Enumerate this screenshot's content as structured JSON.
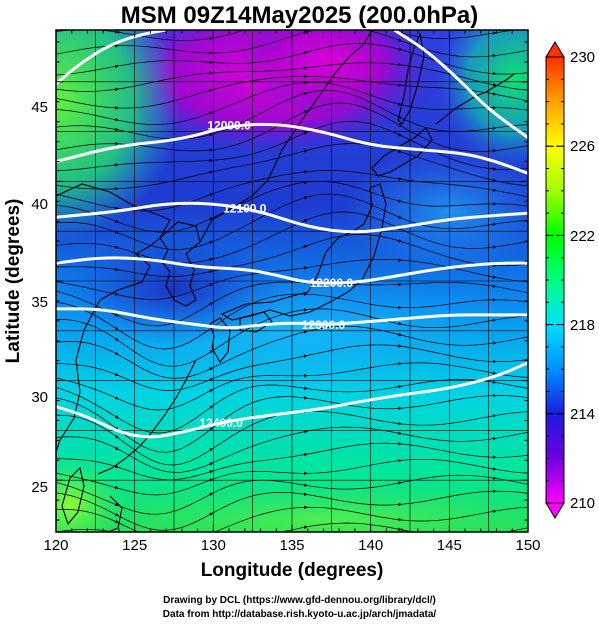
{
  "title": "MSM 09Z14May2025 (200.0hPa)",
  "xlabel": "Longitude (degrees)",
  "ylabel": "Latitude  (degrees)",
  "x_ticks": [
    "120",
    "125",
    "130",
    "135",
    "140",
    "145",
    "150"
  ],
  "y_ticks": [
    "25",
    "30",
    "35",
    "40",
    "45"
  ],
  "colorbar_ticks": [
    "210",
    "214",
    "218",
    "222",
    "226",
    "230"
  ],
  "contour_labels": [
    "12000.0",
    "12100.0",
    "12200.0",
    "12300.0",
    "12400.0"
  ],
  "credit_line1": "Drawing by DCL (https://www.gfd-dennou.org/library/dcl/)",
  "credit_line2": "Data from http://database.rish.kyoto-u.ac.jp/arch/jmadata/",
  "chart_data": {
    "type": "heatmap",
    "title": "MSM 09Z14May2025 (200.0hPa)",
    "xlabel": "Longitude (degrees)",
    "ylabel": "Latitude  (degrees)",
    "xlim": [
      120,
      150
    ],
    "ylim": [
      22.4,
      47.6
    ],
    "colorbar_range": [
      210,
      230
    ],
    "contour_lines": [
      {
        "label": "12000.0",
        "lon": [
          120,
          124,
          128,
          131,
          134,
          137,
          140,
          143,
          146,
          148,
          150
        ],
        "lat": [
          41.0,
          41.8,
          42.1,
          42.8,
          42.9,
          42.5,
          41.8,
          41.6,
          41.4,
          41.0,
          40.4
        ]
      },
      {
        "label": "12100.0",
        "lon": [
          120,
          124,
          127,
          130,
          133,
          136,
          139,
          142,
          145,
          148,
          150
        ],
        "lat": [
          38.2,
          38.5,
          38.9,
          38.9,
          38.5,
          37.7,
          37.4,
          37.7,
          38.1,
          38.3,
          38.4
        ]
      },
      {
        "label": "12200.0",
        "lon": [
          120,
          123,
          126,
          129,
          132,
          134,
          136,
          139,
          142,
          145,
          148,
          150
        ],
        "lat": [
          35.9,
          36.2,
          36.1,
          35.7,
          35.6,
          35.3,
          34.9,
          34.9,
          35.3,
          35.7,
          35.9,
          35.9
        ]
      },
      {
        "label": "12300.0",
        "lon": [
          120,
          123,
          126,
          129,
          131,
          133,
          135,
          137,
          139,
          142,
          145,
          148,
          150
        ],
        "lat": [
          33.6,
          33.6,
          33.1,
          32.8,
          32.6,
          32.8,
          32.9,
          32.8,
          32.9,
          33.1,
          33.3,
          33.3,
          33.3
        ]
      },
      {
        "label": "12400.0",
        "lon": [
          120,
          122,
          124,
          126,
          128,
          130,
          132,
          135,
          137,
          139,
          142,
          145,
          148,
          150
        ],
        "lat": [
          28.7,
          28.2,
          27.4,
          27.1,
          27.4,
          27.8,
          28.1,
          28.4,
          28.6,
          28.9,
          29.3,
          29.6,
          30.2,
          30.9
        ]
      },
      {
        "label": "",
        "lon": [
          120,
          121.5,
          123.5,
          125.5,
          127
        ],
        "lat": [
          44.9,
          45.9,
          46.9,
          47.4,
          47.6
        ]
      },
      {
        "label": "",
        "lon": [
          141.5,
          143.5,
          145.5,
          147.5,
          150
        ],
        "lat": [
          47.6,
          46.6,
          45.2,
          43.6,
          42.2
        ]
      }
    ],
    "colorbar_colors": [
      "#ff00ff",
      "#7000e0",
      "#1c1ce0",
      "#0090ff",
      "#00e0ff",
      "#00ff80",
      "#00ff00",
      "#a0ff00",
      "#ffff00",
      "#ffa000",
      "#ff3000"
    ]
  }
}
